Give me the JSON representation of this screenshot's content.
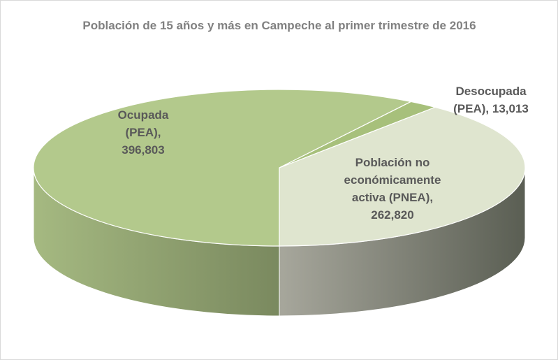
{
  "chart_data": {
    "type": "pie3d",
    "title": "Población de 15 años y más en Campeche al primer trimestre de 2016",
    "categories": [
      "Ocupada (PEA)",
      "Desocupada (PEA)",
      "Población no económicamente activa (PNEA)"
    ],
    "values": [
      396803,
      13013,
      262820
    ],
    "value_labels": [
      "396,803",
      "13,013",
      "262,820"
    ],
    "colors": [
      "#b3c98c",
      "#a7c07b",
      "#dfe5cf"
    ]
  }
}
